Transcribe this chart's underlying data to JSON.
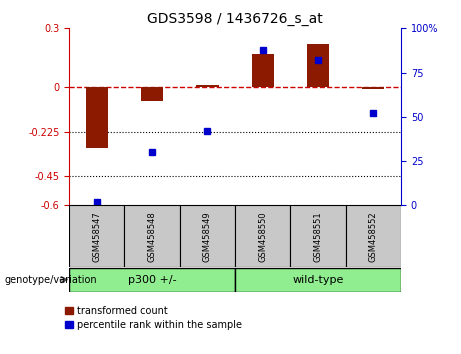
{
  "title": "GDS3598 / 1436726_s_at",
  "samples": [
    "GSM458547",
    "GSM458548",
    "GSM458549",
    "GSM458550",
    "GSM458551",
    "GSM458552"
  ],
  "transformed_counts": [
    -0.31,
    -0.07,
    0.01,
    0.17,
    0.22,
    -0.01
  ],
  "percentile_ranks": [
    2,
    30,
    42,
    88,
    82,
    52
  ],
  "bar_color": "#8B1A00",
  "dot_color": "#0000CC",
  "ylim_left": [
    -0.6,
    0.3
  ],
  "ylim_right": [
    0,
    100
  ],
  "yticks_left": [
    -0.6,
    -0.45,
    -0.225,
    0,
    0.3
  ],
  "ytick_labels_left": [
    "-0.6",
    "-0.45",
    "-0.225",
    "0",
    "0.3"
  ],
  "yticks_right": [
    0,
    25,
    50,
    75,
    100
  ],
  "ytick_labels_right": [
    "0",
    "25",
    "50",
    "75",
    "100%"
  ],
  "dotted_lines": [
    -0.225,
    -0.45
  ],
  "bar_width": 0.4,
  "left_label_color": "#CC0000",
  "right_label_color": "#0000CC",
  "group_spans": [
    [
      "p300 +/-",
      0,
      2
    ],
    [
      "wild-type",
      3,
      5
    ]
  ],
  "green_color": "#90EE90",
  "label_color_p300": "#228B22",
  "sample_box_color": "#C8C8C8"
}
